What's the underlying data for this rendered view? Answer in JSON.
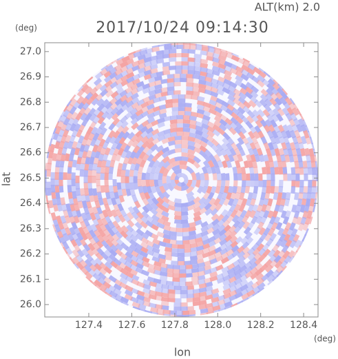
{
  "chart_data": {
    "type": "ppi",
    "title": "2017/10/24 09:14:30",
    "subtitle": "ALT(km)  2.0",
    "x_label": "lon",
    "y_label": "lat",
    "x_unit": "(deg)",
    "y_unit": "(deg)",
    "xlim": [
      127.195,
      128.467
    ],
    "ylim": [
      25.951,
      27.035
    ],
    "xticks": [
      127.4,
      127.6,
      127.8,
      {
        "value": 128.0,
        "label": "128.0"
      },
      128.2,
      128.4
    ],
    "yticks": [
      {
        "value": 26.0,
        "label": "26.0"
      },
      26.1,
      26.2,
      26.3,
      26.4,
      26.5,
      26.6,
      26.7,
      26.8,
      26.9,
      {
        "value": 27.0,
        "label": "27.0"
      }
    ],
    "colors": [
      "#f4a3a3",
      "#a9acf3"
    ]
  }
}
